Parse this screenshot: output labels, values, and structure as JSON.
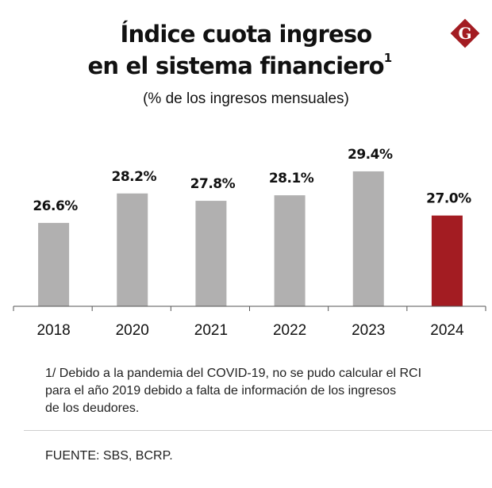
{
  "header": {
    "title_line1": "Índice cuota ingreso",
    "title_line2": "en el sistema financiero",
    "title_footnote_mark": "1",
    "subtitle": "(% de los ingresos mensuales)"
  },
  "logo": {
    "letter": "G",
    "color": "#a31c22",
    "icon": "gestion-logo-icon"
  },
  "chart_data": {
    "type": "bar",
    "title": "Índice cuota ingreso en el sistema financiero",
    "subtitle": "(% de los ingresos mensuales)",
    "categories": [
      "2018",
      "2020",
      "2021",
      "2022",
      "2023",
      "2024"
    ],
    "values": [
      26.6,
      28.2,
      27.8,
      28.1,
      29.4,
      27.0
    ],
    "labels": [
      "26.6%",
      "28.2%",
      "27.8%",
      "28.1%",
      "29.4%",
      "27.0%"
    ],
    "colors": [
      "#b1b0b0",
      "#b1b0b0",
      "#b1b0b0",
      "#b1b0b0",
      "#b1b0b0",
      "#a31c22"
    ],
    "xlabel": "",
    "ylabel": "",
    "ylim": [
      22.07,
      30
    ],
    "grid": false,
    "legend": "none"
  },
  "footer": {
    "note": "1/ Debido a la pandemia del COVID-19, no se pudo calcular el RCI para el año 2019 debido a falta de información de los ingresos de los deudores.",
    "note_lines": [
      "1/ Debido a la pandemia del COVID-19, no se pudo calcular el RCI",
      "para el año 2019 debido a falta de información de los ingresos",
      "de los deudores."
    ],
    "source": "FUENTE: SBS, BCRP."
  }
}
